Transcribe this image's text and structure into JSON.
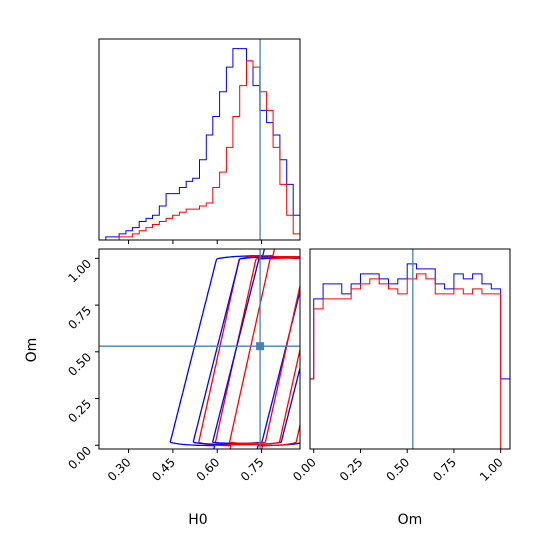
{
  "chart_data": {
    "type": "corner",
    "parameters": [
      "H0",
      "Om"
    ],
    "xlabels": [
      "H0",
      "Om"
    ],
    "ylabels": [
      "",
      "Om"
    ],
    "truth": {
      "H0": 0.745,
      "Om": 0.53
    },
    "truth_color": "#4682b4",
    "series_colors": [
      "#0000ff",
      "#ff0000"
    ],
    "ranges": {
      "H0": [
        0.2,
        0.88
      ],
      "Om": [
        -0.02,
        1.05
      ]
    },
    "ticks": {
      "H0": [
        "0.30",
        "0.45",
        "0.60",
        "0.75"
      ],
      "Om": [
        "0.00",
        "0.25",
        "0.50",
        "0.75",
        "1.00"
      ]
    },
    "hist_H0": {
      "edges": [
        0.2,
        0.223,
        0.245,
        0.268,
        0.291,
        0.313,
        0.336,
        0.359,
        0.381,
        0.404,
        0.427,
        0.449,
        0.472,
        0.495,
        0.517,
        0.54,
        0.563,
        0.585,
        0.608,
        0.631,
        0.653,
        0.676,
        0.699,
        0.721,
        0.744,
        0.767,
        0.789,
        0.812,
        0.835,
        0.857,
        0.88
      ],
      "series": [
        {
          "values": [
            0,
            1,
            1,
            2,
            3,
            4,
            6,
            7,
            8,
            11,
            15,
            15,
            17,
            19,
            20,
            26,
            34,
            40,
            48,
            56,
            62,
            62,
            58,
            50,
            42,
            38,
            34,
            26,
            18,
            8
          ]
        },
        {
          "values": [
            0,
            0,
            0,
            1,
            1,
            2,
            3,
            4,
            5,
            6,
            7,
            8,
            9,
            10,
            10,
            11,
            12,
            17,
            22,
            30,
            40,
            50,
            58,
            56,
            48,
            42,
            30,
            18,
            8,
            2
          ]
        }
      ]
    },
    "hist_Om": {
      "edges": [
        -0.05,
        0.0,
        0.05,
        0.1,
        0.15,
        0.2,
        0.25,
        0.3,
        0.35,
        0.4,
        0.45,
        0.5,
        0.55,
        0.6,
        0.65,
        0.7,
        0.75,
        0.8,
        0.85,
        0.9,
        0.95,
        1.0,
        1.05
      ],
      "series": [
        {
          "values": [
            14,
            30,
            33,
            33,
            31,
            33,
            35,
            35,
            34,
            33,
            34,
            37,
            36,
            36,
            33,
            32,
            35,
            34,
            35,
            33,
            32,
            14
          ]
        },
        {
          "values": [
            14,
            28,
            30,
            30,
            30,
            32,
            33,
            34,
            33,
            32,
            31,
            34,
            35,
            34,
            31,
            31,
            32,
            31,
            32,
            31,
            31,
            0
          ]
        }
      ]
    }
  }
}
